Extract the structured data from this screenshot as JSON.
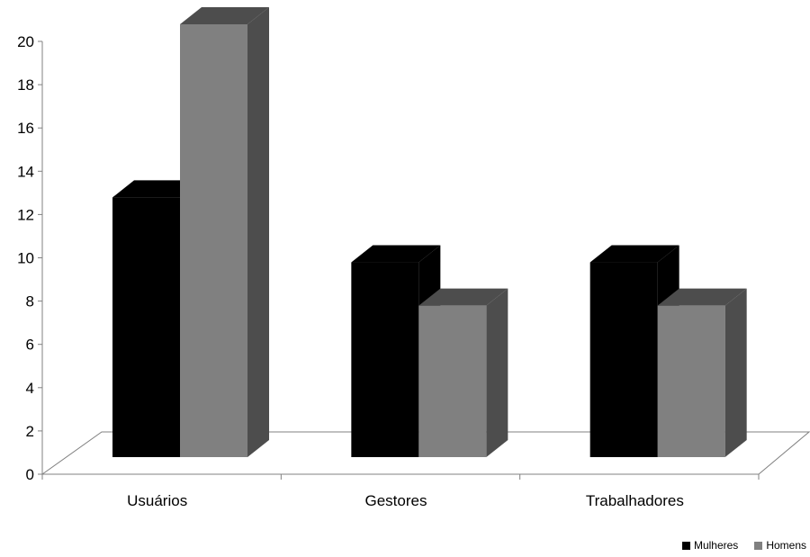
{
  "chart_data": {
    "type": "bar",
    "categories": [
      "Usuários",
      "Gestores",
      "Trabalhadores"
    ],
    "series": [
      {
        "name": "Mulheres",
        "values": [
          12,
          9,
          9
        ],
        "color": "#000000"
      },
      {
        "name": "Homens",
        "values": [
          20,
          7,
          7
        ],
        "color": "#808080"
      }
    ],
    "ylim": [
      0,
      20
    ],
    "yticks": [
      0,
      2,
      4,
      6,
      8,
      10,
      12,
      14,
      16,
      18,
      20
    ],
    "grid": false,
    "legend_position": "bottom-right",
    "style": "3d-column"
  }
}
